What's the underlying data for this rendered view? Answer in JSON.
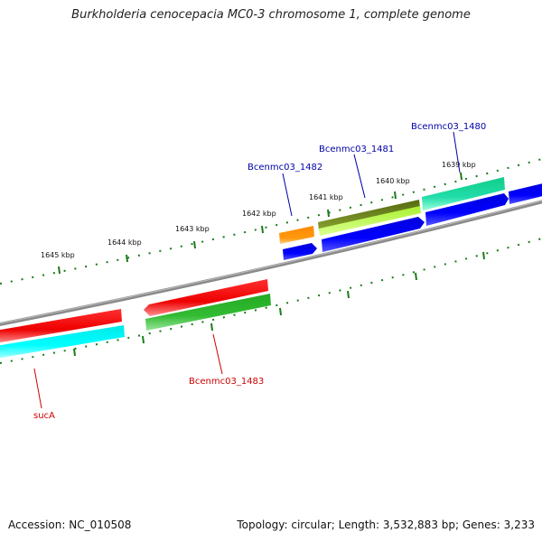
{
  "title": "Burkholderia cenocepacia MC0-3 chromosome 1, complete genome",
  "footer": {
    "accession": "Accession: NC_010508",
    "summary": "Topology: circular; Length: 3,532,883 bp; Genes: 3,233"
  },
  "scale_labels": [
    "1645 kbp",
    "1644 kbp",
    "1643 kbp",
    "1642 kbp",
    "1641 kbp",
    "1640 kbp",
    "1639 kbp"
  ],
  "gene_labels": [
    {
      "text": "Bcenmc03_1480",
      "strand": "forward"
    },
    {
      "text": "Bcenmc03_1481",
      "strand": "forward"
    },
    {
      "text": "Bcenmc03_1482",
      "strand": "forward"
    },
    {
      "text": "Bcenmc03_1483",
      "strand": "reverse"
    },
    {
      "text": "sucA",
      "strand": "reverse"
    }
  ],
  "colors": {
    "forward_label": "#0000aa",
    "reverse_label": "#cc0000",
    "tick": "#1a7a1a",
    "backbone": "#8a8a8a",
    "red": "#ff0000",
    "green": "#33bb33",
    "cyan": "#00ffff",
    "blue": "#0000ee",
    "orange": "#ff8800",
    "olive": "#6b7f1a",
    "lime": "#b8ff40",
    "teal": "#22ddaa"
  }
}
